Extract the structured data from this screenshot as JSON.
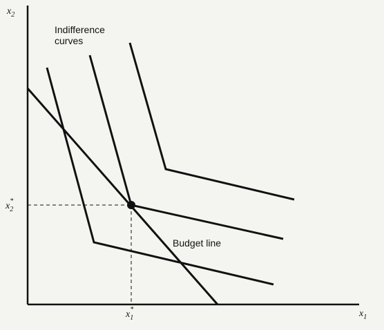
{
  "diagram": {
    "axis_x_label": "x",
    "axis_x_sub": "1",
    "axis_y_label": "x",
    "axis_y_sub": "2",
    "indifference_label_line1": "Indifference",
    "indifference_label_line2": "curves",
    "budget_label": "Budget line",
    "x1_star_label": "x",
    "x1_star_sub": "1",
    "x1_star_sup": "*",
    "x2_star_label": "x",
    "x2_star_sub": "2",
    "x2_star_sup": "*",
    "line_color": "#111111",
    "background": "#f4f4f1"
  }
}
